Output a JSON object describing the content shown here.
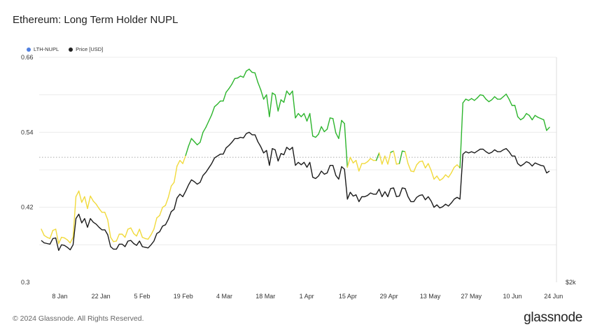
{
  "title": "Ethereum: Long Term Holder NUPL",
  "footer": "© 2024 Glassnode. All Rights Reserved.",
  "logo": "glassnode",
  "legend": [
    {
      "label": "LTH-NUPL",
      "color": "#4f7fe0"
    },
    {
      "label": "Price [USD]",
      "color": "#222222"
    }
  ],
  "colors": {
    "nupl_high": "#2db52d",
    "nupl_low": "#f1da3c",
    "price": "#1b1b1b",
    "grid": "#ececec",
    "threshold": "#aaaaaa"
  },
  "chart_data": {
    "type": "line",
    "title": "Ethereum: Long Term Holder NUPL",
    "x_start": "2024-01-01",
    "x_end": "2024-06-25",
    "x_ticks": [
      "8 Jan",
      "22 Jan",
      "5 Feb",
      "19 Feb",
      "4 Mar",
      "18 Mar",
      "1 Apr",
      "15 Apr",
      "29 Apr",
      "13 May",
      "27 May",
      "10 Jun",
      "24 Jun"
    ],
    "y_left": {
      "ticks": [
        "0.66",
        "0.54",
        "0.42",
        "0.3"
      ],
      "range": [
        0.3,
        0.66
      ]
    },
    "y_right": {
      "ticks": [
        "$2k"
      ]
    },
    "threshold": 0.5,
    "grid": true,
    "legend_position": "top-left",
    "series": [
      {
        "name": "LTH-NUPL",
        "color_above_threshold": "#2db52d",
        "color_below_threshold": "#f1da3c",
        "values": [
          0.385,
          0.375,
          0.372,
          0.37,
          0.383,
          0.385,
          0.362,
          0.372,
          0.371,
          0.368,
          0.363,
          0.372,
          0.437,
          0.446,
          0.428,
          0.437,
          0.418,
          0.438,
          0.43,
          0.425,
          0.418,
          0.412,
          0.412,
          0.4,
          0.372,
          0.365,
          0.366,
          0.377,
          0.377,
          0.372,
          0.385,
          0.387,
          0.378,
          0.374,
          0.385,
          0.372,
          0.37,
          0.369,
          0.376,
          0.385,
          0.403,
          0.407,
          0.42,
          0.423,
          0.436,
          0.454,
          0.46,
          0.486,
          0.495,
          0.49,
          0.503,
          0.518,
          0.53,
          0.525,
          0.52,
          0.524,
          0.54,
          0.548,
          0.558,
          0.568,
          0.581,
          0.585,
          0.59,
          0.59,
          0.604,
          0.61,
          0.617,
          0.626,
          0.627,
          0.63,
          0.628,
          0.638,
          0.641,
          0.636,
          0.635,
          0.62,
          0.608,
          0.593,
          0.6,
          0.565,
          0.603,
          0.6,
          0.574,
          0.592,
          0.588,
          0.606,
          0.6,
          0.606,
          0.563,
          0.57,
          0.565,
          0.57,
          0.558,
          0.57,
          0.534,
          0.532,
          0.537,
          0.549,
          0.541,
          0.545,
          0.563,
          0.562,
          0.539,
          0.53,
          0.559,
          0.554,
          0.484,
          0.5,
          0.491,
          0.495,
          0.478,
          0.49,
          0.49,
          0.493,
          0.498,
          0.495,
          0.495,
          0.507,
          0.489,
          0.502,
          0.489,
          0.508,
          0.51,
          0.489,
          0.49,
          0.51,
          0.509,
          0.49,
          0.478,
          0.477,
          0.488,
          0.493,
          0.494,
          0.483,
          0.49,
          0.479,
          0.465,
          0.47,
          0.463,
          0.466,
          0.472,
          0.468,
          0.475,
          0.484,
          0.488,
          0.483,
          0.587,
          0.593,
          0.591,
          0.594,
          0.591,
          0.595,
          0.6,
          0.599,
          0.593,
          0.589,
          0.592,
          0.597,
          0.593,
          0.593,
          0.597,
          0.601,
          0.593,
          0.583,
          0.583,
          0.565,
          0.56,
          0.563,
          0.57,
          0.567,
          0.56,
          0.567,
          0.564,
          0.562,
          0.56,
          0.543,
          0.548
        ]
      },
      {
        "name": "Price [USD]",
        "color": "#1b1b1b",
        "values": [
          0.367,
          0.363,
          0.362,
          0.361,
          0.37,
          0.371,
          0.351,
          0.36,
          0.359,
          0.356,
          0.352,
          0.36,
          0.402,
          0.409,
          0.395,
          0.402,
          0.388,
          0.402,
          0.396,
          0.393,
          0.388,
          0.384,
          0.384,
          0.376,
          0.357,
          0.353,
          0.353,
          0.361,
          0.361,
          0.357,
          0.366,
          0.367,
          0.362,
          0.359,
          0.366,
          0.357,
          0.356,
          0.355,
          0.36,
          0.366,
          0.378,
          0.381,
          0.39,
          0.392,
          0.401,
          0.413,
          0.417,
          0.435,
          0.441,
          0.437,
          0.446,
          0.456,
          0.464,
          0.461,
          0.457,
          0.46,
          0.471,
          0.476,
          0.483,
          0.49,
          0.499,
          0.502,
          0.505,
          0.505,
          0.515,
          0.519,
          0.524,
          0.53,
          0.53,
          0.532,
          0.531,
          0.538,
          0.54,
          0.536,
          0.536,
          0.525,
          0.517,
          0.507,
          0.511,
          0.487,
          0.514,
          0.512,
          0.494,
          0.506,
          0.504,
          0.516,
          0.512,
          0.516,
          0.487,
          0.492,
          0.488,
          0.492,
          0.484,
          0.492,
          0.468,
          0.466,
          0.47,
          0.478,
          0.473,
          0.475,
          0.487,
          0.487,
          0.471,
          0.465,
          0.485,
          0.481,
          0.433,
          0.444,
          0.438,
          0.44,
          0.429,
          0.437,
          0.437,
          0.439,
          0.443,
          0.441,
          0.441,
          0.449,
          0.437,
          0.445,
          0.437,
          0.45,
          0.451,
          0.437,
          0.438,
          0.451,
          0.45,
          0.437,
          0.429,
          0.429,
          0.436,
          0.439,
          0.44,
          0.432,
          0.437,
          0.43,
          0.42,
          0.424,
          0.419,
          0.421,
          0.425,
          0.422,
          0.427,
          0.433,
          0.436,
          0.433,
          0.505,
          0.509,
          0.507,
          0.509,
          0.507,
          0.51,
          0.513,
          0.513,
          0.509,
          0.506,
          0.508,
          0.512,
          0.509,
          0.509,
          0.512,
          0.514,
          0.509,
          0.502,
          0.502,
          0.49,
          0.486,
          0.489,
          0.493,
          0.491,
          0.486,
          0.491,
          0.489,
          0.487,
          0.486,
          0.475,
          0.478
        ]
      }
    ]
  }
}
